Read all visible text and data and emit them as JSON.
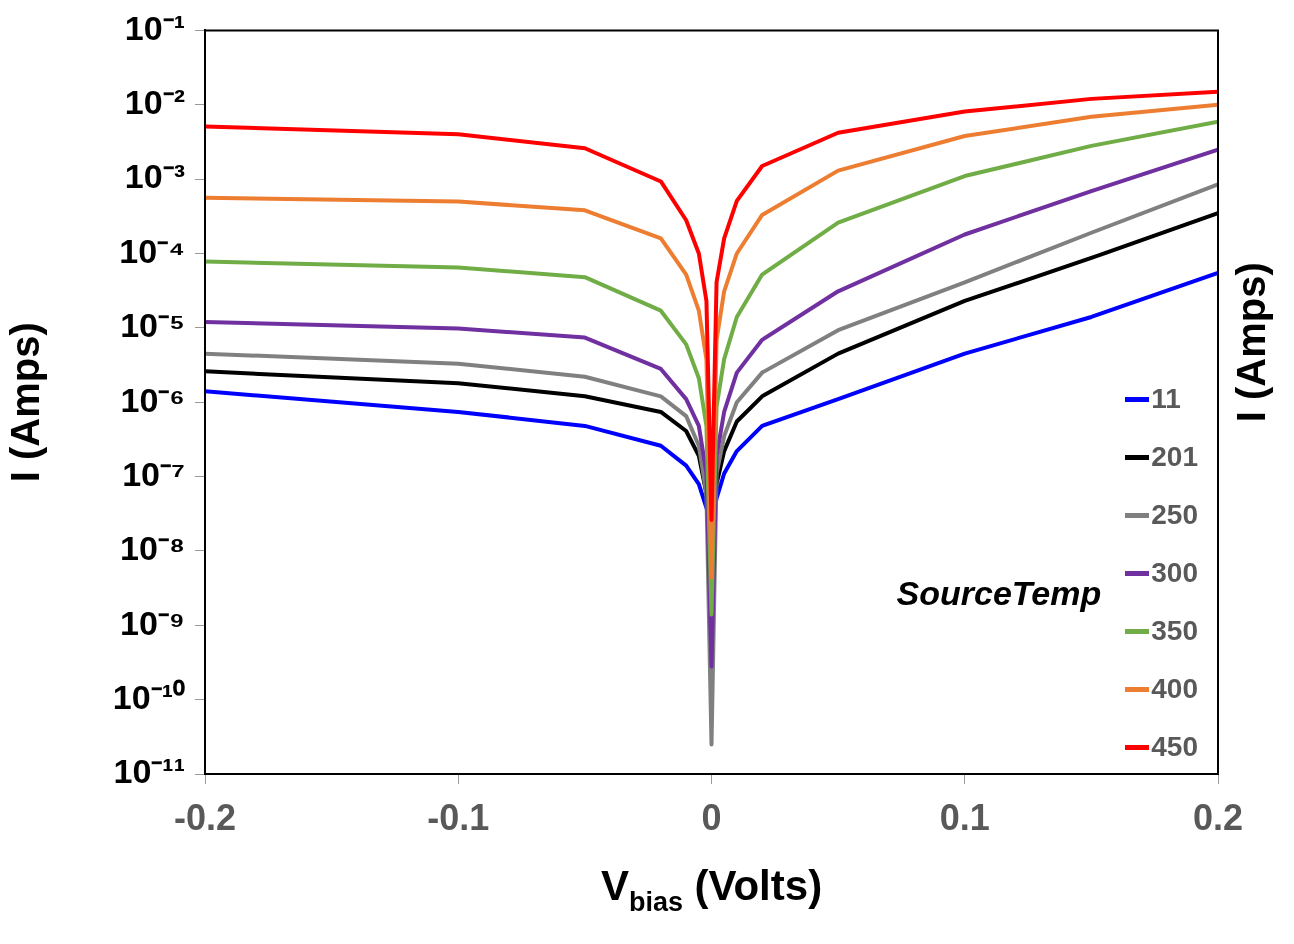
{
  "chart_data": {
    "type": "line",
    "xlabel": "V$_{bias}$ (Volts)",
    "ylabel": "I (Amps)",
    "y2label": "I (Amps)",
    "legend_title": "SourceTemp",
    "legend": "bottom right",
    "log": "y",
    "grid": false,
    "marker": "none",
    "line_style": "solid",
    "x": [
      -0.2,
      -0.1,
      -0.05,
      -0.02,
      -0.01,
      -0.005,
      -0.002,
      0,
      0.002,
      0.005,
      0.01,
      0.02,
      0.05,
      0.1,
      0.15,
      0.2
    ],
    "xlim": [
      -0.2,
      0.2
    ],
    "xticks": [
      -0.2,
      -0.1,
      0,
      0.1,
      0.2
    ],
    "ylim": [
      1e-11,
      0.1
    ],
    "yticks": [
      {
        "value": 1e-11,
        "label": "10⁻¹¹"
      },
      {
        "value": 1e-10,
        "label": "10⁻¹⁰"
      },
      {
        "value": 1e-09,
        "label": "10⁻⁹"
      },
      {
        "value": 1e-08,
        "label": "10⁻⁸"
      },
      {
        "value": 1e-07,
        "label": "10⁻⁷"
      },
      {
        "value": 1e-06,
        "label": "10⁻⁶"
      },
      {
        "value": 1e-05,
        "label": "10⁻⁵"
      },
      {
        "value": 0.0001,
        "label": "10⁻⁴"
      },
      {
        "value": 0.001,
        "label": "10⁻³"
      },
      {
        "value": 0.01,
        "label": "10⁻²"
      },
      {
        "value": 0.1,
        "label": "10⁻¹"
      }
    ],
    "series": [
      {
        "name": "11",
        "color": "#0000ff",
        "values": [
          1.4e-06,
          7.4e-07,
          4.8e-07,
          2.6e-07,
          1.4e-07,
          7.9e-08,
          3.8e-08,
          2.4e-08,
          5.1e-08,
          1.1e-07,
          2.2e-07,
          4.8e-07,
          1.1e-06,
          4.5e-06,
          1.4e-05,
          5.5e-05
        ]
      },
      {
        "name": "201",
        "color": "#000000",
        "values": [
          2.6e-06,
          1.8e-06,
          1.2e-06,
          7.4e-07,
          4.1e-07,
          1.9e-07,
          5.9e-08,
          2.4e-08,
          7.9e-08,
          2.2e-07,
          5.5e-07,
          1.2e-06,
          4.5e-06,
          2.3e-05,
          8.7e-05,
          0.00035
        ]
      },
      {
        "name": "250",
        "color": "#808080",
        "values": [
          4.5e-06,
          3.3e-06,
          2.2e-06,
          1.2e-06,
          6.5e-07,
          2.6e-07,
          5.9e-08,
          2.5e-11,
          1.1e-07,
          3.5e-07,
          1e-06,
          2.5e-06,
          9.3e-06,
          4.1e-05,
          0.00019,
          0.00085
        ]
      },
      {
        "name": "300",
        "color": "#7030a0",
        "values": [
          1.2e-05,
          9.8e-06,
          7.4e-06,
          2.8e-06,
          1.1e-06,
          4.8e-07,
          1.1e-07,
          2.8e-10,
          1.9e-07,
          7.4e-07,
          2.5e-06,
          6.9e-06,
          3.1e-05,
          0.00018,
          0.00069,
          0.0025
        ]
      },
      {
        "name": "350",
        "color": "#70ad47",
        "values": [
          7.8e-05,
          6.5e-05,
          4.8e-05,
          1.7e-05,
          6e-06,
          2.1e-06,
          4.8e-07,
          1.4e-09,
          8.7e-07,
          3.8e-06,
          1.4e-05,
          5.2e-05,
          0.00026,
          0.0011,
          0.0028,
          0.0059
        ]
      },
      {
        "name": "400",
        "color": "#ed7d31",
        "values": [
          0.00056,
          0.0005,
          0.00038,
          0.00016,
          5.2e-05,
          1.7e-05,
          3.8e-06,
          4.4e-09,
          6.9e-06,
          3.1e-05,
          0.0001,
          0.00033,
          0.0013,
          0.0038,
          0.0069,
          0.01
        ]
      },
      {
        "name": "450",
        "color": "#ff0000",
        "values": [
          0.0051,
          0.004,
          0.0026,
          0.00093,
          0.00028,
          0.0001,
          2.3e-05,
          2.6e-08,
          4.1e-05,
          0.00016,
          0.00051,
          0.0015,
          0.0042,
          0.0081,
          0.012,
          0.015
        ]
      }
    ]
  }
}
